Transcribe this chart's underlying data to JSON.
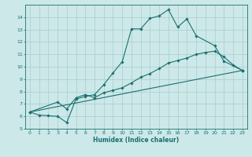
{
  "title": "",
  "xlabel": "Humidex (Indice chaleur)",
  "xlim": [
    -0.5,
    23.5
  ],
  "ylim": [
    5,
    15.0
  ],
  "yticks": [
    5,
    6,
    7,
    8,
    9,
    10,
    11,
    12,
    13,
    14
  ],
  "xticks": [
    0,
    1,
    2,
    3,
    4,
    5,
    6,
    7,
    8,
    9,
    10,
    11,
    12,
    13,
    14,
    15,
    16,
    17,
    18,
    19,
    20,
    21,
    22,
    23
  ],
  "bg_color": "#cce8e8",
  "grid_color": "#aacccc",
  "line_color": "#1a7070",
  "line1_x": [
    0,
    1,
    2,
    3,
    4,
    5,
    6,
    7,
    8,
    9,
    10,
    11,
    12,
    13,
    14,
    15,
    16,
    17,
    18,
    20,
    21,
    23
  ],
  "line1_y": [
    6.35,
    6.1,
    6.05,
    6.0,
    5.5,
    7.4,
    7.6,
    7.75,
    8.55,
    9.5,
    10.4,
    13.05,
    13.05,
    13.9,
    14.1,
    14.6,
    13.2,
    13.85,
    12.5,
    11.7,
    10.45,
    9.7
  ],
  "line2_x": [
    0,
    3,
    4,
    5,
    6,
    7,
    8,
    9,
    10,
    11,
    12,
    13,
    14,
    15,
    16,
    17,
    18,
    19,
    20,
    21,
    22,
    23
  ],
  "line2_y": [
    6.35,
    7.15,
    6.6,
    7.5,
    7.75,
    7.5,
    7.9,
    8.1,
    8.3,
    8.7,
    9.15,
    9.45,
    9.85,
    10.3,
    10.5,
    10.7,
    11.0,
    11.15,
    11.25,
    10.8,
    10.15,
    9.7
  ],
  "line3_x": [
    0,
    23
  ],
  "line3_y": [
    6.35,
    9.7
  ],
  "lw": 0.8,
  "marker_size": 1.8,
  "tick_fontsize": 4.5,
  "xlabel_fontsize": 5.5
}
